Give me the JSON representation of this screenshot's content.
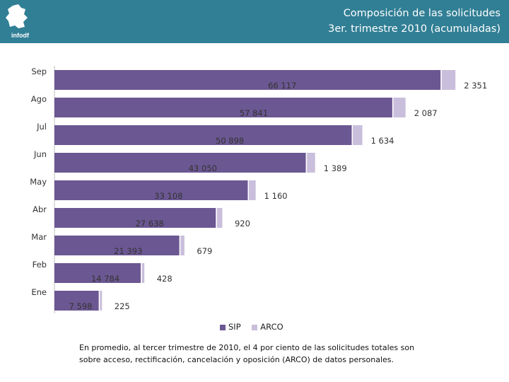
{
  "header": {
    "logo_text": "infodf",
    "title_line1": "Composición de las solicitudes",
    "title_line2": "3er. trimestre 2010 (acumuladas)"
  },
  "colors": {
    "header_bg": "#317f95",
    "sip": "#6b5792",
    "arco": "#c9bedb"
  },
  "chart_data": {
    "type": "bar",
    "orientation": "horizontal",
    "stacked": true,
    "categories": [
      "Sep",
      "Ago",
      "Jul",
      "Jun",
      "May",
      "Abr",
      "Mar",
      "Feb",
      "Ene"
    ],
    "series": [
      {
        "name": "SIP",
        "values": [
          66117,
          57841,
          50898,
          43050,
          33108,
          27638,
          21393,
          14784,
          7598
        ]
      },
      {
        "name": "ARCO",
        "values": [
          2351,
          2087,
          1634,
          1389,
          1160,
          920,
          679,
          428,
          225
        ]
      }
    ],
    "sip_labels": [
      "66 117",
      "57 841",
      "50 898",
      "43 050",
      "33 108",
      "27 638",
      "21 393",
      "14 784",
      "7 598"
    ],
    "arco_labels": [
      "2 351",
      "2 087",
      "1 634",
      "1 389",
      "1 160",
      "920",
      "679",
      "428",
      "225"
    ],
    "xlim": [
      0,
      68500
    ],
    "legend": [
      "SIP",
      "ARCO"
    ],
    "legend_position": "bottom"
  },
  "note": "En promedio, al tercer trimestre de 2010, el 4 por ciento de las solicitudes totales son sobre acceso, rectificación, cancelación y oposición (ARCO) de datos personales."
}
